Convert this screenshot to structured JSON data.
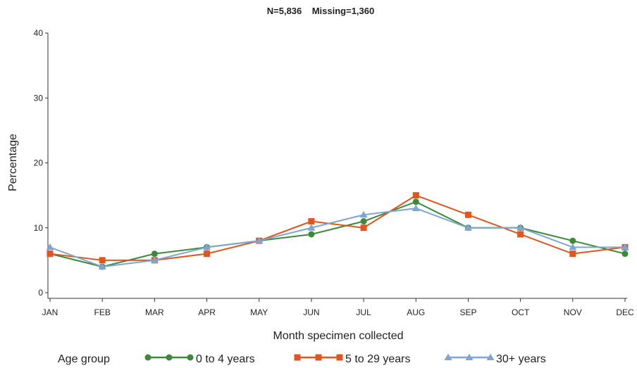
{
  "chart_data": {
    "type": "line",
    "title": "N=5,836    Missing=1,360",
    "xlabel": "Month specimen collected",
    "ylabel": "Percentage",
    "ylim": [
      0,
      40
    ],
    "yticks": [
      "0",
      "10",
      "20",
      "30",
      "40"
    ],
    "categories": [
      "JAN",
      "FEB",
      "MAR",
      "APR",
      "MAY",
      "JUN",
      "JUL",
      "AUG",
      "SEP",
      "OCT",
      "NOV",
      "DEC"
    ],
    "legend_title": "Age group",
    "legend_position": "bottom",
    "grid": false,
    "series": [
      {
        "name": "0 to 4 years",
        "color": "#3a8a3a",
        "marker": "circle",
        "values": [
          6,
          4,
          6,
          7,
          8,
          9,
          11,
          14,
          10,
          10,
          8,
          6
        ]
      },
      {
        "name": "5 to 29 years",
        "color": "#e0561c",
        "marker": "square",
        "values": [
          6,
          5,
          5,
          6,
          8,
          11,
          10,
          15,
          12,
          9,
          6,
          7
        ]
      },
      {
        "name": "30+ years",
        "color": "#7fa6d3",
        "marker": "triangle",
        "values": [
          7,
          4,
          5,
          7,
          8,
          10,
          12,
          13,
          10,
          10,
          7,
          7
        ]
      }
    ]
  }
}
